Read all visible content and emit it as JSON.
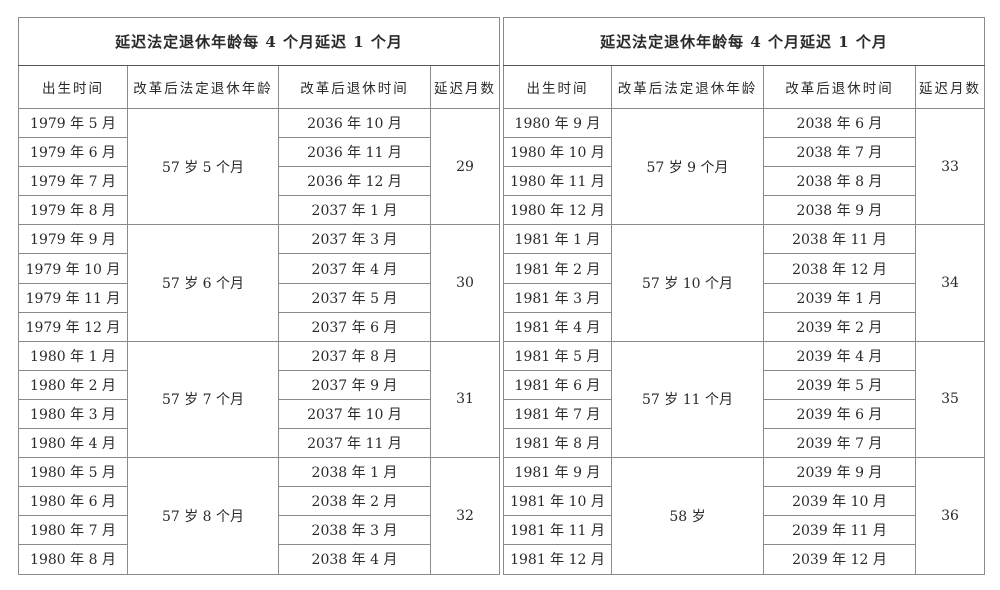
{
  "tables": [
    {
      "title": "延迟法定退休年龄每 4 个月延迟 1 个月",
      "headers": [
        "出生时间",
        "改革后法定退休年龄",
        "改革后退休时间",
        "延迟月数"
      ],
      "groups": [
        {
          "age": "57 岁 5 个月",
          "delay": "29",
          "rows": [
            {
              "birth": "1979 年 5 月",
              "retire": "2036 年 10 月"
            },
            {
              "birth": "1979 年 6 月",
              "retire": "2036 年 11 月"
            },
            {
              "birth": "1979 年 7 月",
              "retire": "2036 年 12 月"
            },
            {
              "birth": "1979 年 8 月",
              "retire": "2037 年 1 月"
            }
          ]
        },
        {
          "age": "57 岁 6 个月",
          "delay": "30",
          "rows": [
            {
              "birth": "1979 年 9 月",
              "retire": "2037 年 3 月"
            },
            {
              "birth": "1979 年 10 月",
              "retire": "2037 年 4 月"
            },
            {
              "birth": "1979 年 11 月",
              "retire": "2037 年 5 月"
            },
            {
              "birth": "1979 年 12 月",
              "retire": "2037 年 6 月"
            }
          ]
        },
        {
          "age": "57 岁 7 个月",
          "delay": "31",
          "rows": [
            {
              "birth": "1980 年 1 月",
              "retire": "2037 年 8 月"
            },
            {
              "birth": "1980 年 2 月",
              "retire": "2037 年 9 月"
            },
            {
              "birth": "1980 年 3 月",
              "retire": "2037 年 10 月"
            },
            {
              "birth": "1980 年 4 月",
              "retire": "2037 年 11 月"
            }
          ]
        },
        {
          "age": "57 岁 8 个月",
          "delay": "32",
          "rows": [
            {
              "birth": "1980 年 5 月",
              "retire": "2038 年 1 月"
            },
            {
              "birth": "1980 年 6 月",
              "retire": "2038 年 2 月"
            },
            {
              "birth": "1980 年 7 月",
              "retire": "2038 年 3 月"
            },
            {
              "birth": "1980 年 8 月",
              "retire": "2038 年 4 月"
            }
          ]
        }
      ]
    },
    {
      "title": "延迟法定退休年龄每 4 个月延迟 1 个月",
      "headers": [
        "出生时间",
        "改革后法定退休年龄",
        "改革后退休时间",
        "延迟月数"
      ],
      "groups": [
        {
          "age": "57 岁 9 个月",
          "delay": "33",
          "rows": [
            {
              "birth": "1980 年 9 月",
              "retire": "2038 年 6 月"
            },
            {
              "birth": "1980 年 10 月",
              "retire": "2038 年 7 月"
            },
            {
              "birth": "1980 年 11 月",
              "retire": "2038 年 8 月"
            },
            {
              "birth": "1980 年 12 月",
              "retire": "2038 年 9 月"
            }
          ]
        },
        {
          "age": "57 岁 10 个月",
          "delay": "34",
          "rows": [
            {
              "birth": "1981 年 1 月",
              "retire": "2038 年 11 月"
            },
            {
              "birth": "1981 年 2 月",
              "retire": "2038 年 12 月"
            },
            {
              "birth": "1981 年 3 月",
              "retire": "2039 年 1 月"
            },
            {
              "birth": "1981 年 4 月",
              "retire": "2039 年 2 月"
            }
          ]
        },
        {
          "age": "57 岁 11 个月",
          "delay": "35",
          "rows": [
            {
              "birth": "1981 年 5 月",
              "retire": "2039 年 4 月"
            },
            {
              "birth": "1981 年 6 月",
              "retire": "2039 年 5 月"
            },
            {
              "birth": "1981 年 7 月",
              "retire": "2039 年 6 月"
            },
            {
              "birth": "1981 年 8 月",
              "retire": "2039 年 7 月"
            }
          ]
        },
        {
          "age": "58 岁",
          "delay": "36",
          "rows": [
            {
              "birth": "1981 年 9 月",
              "retire": "2039 年 9 月"
            },
            {
              "birth": "1981 年 10 月",
              "retire": "2039 年 10 月"
            },
            {
              "birth": "1981 年 11 月",
              "retire": "2039 年 11 月"
            },
            {
              "birth": "1981 年 12 月",
              "retire": "2039 年 12 月"
            }
          ]
        }
      ]
    }
  ]
}
